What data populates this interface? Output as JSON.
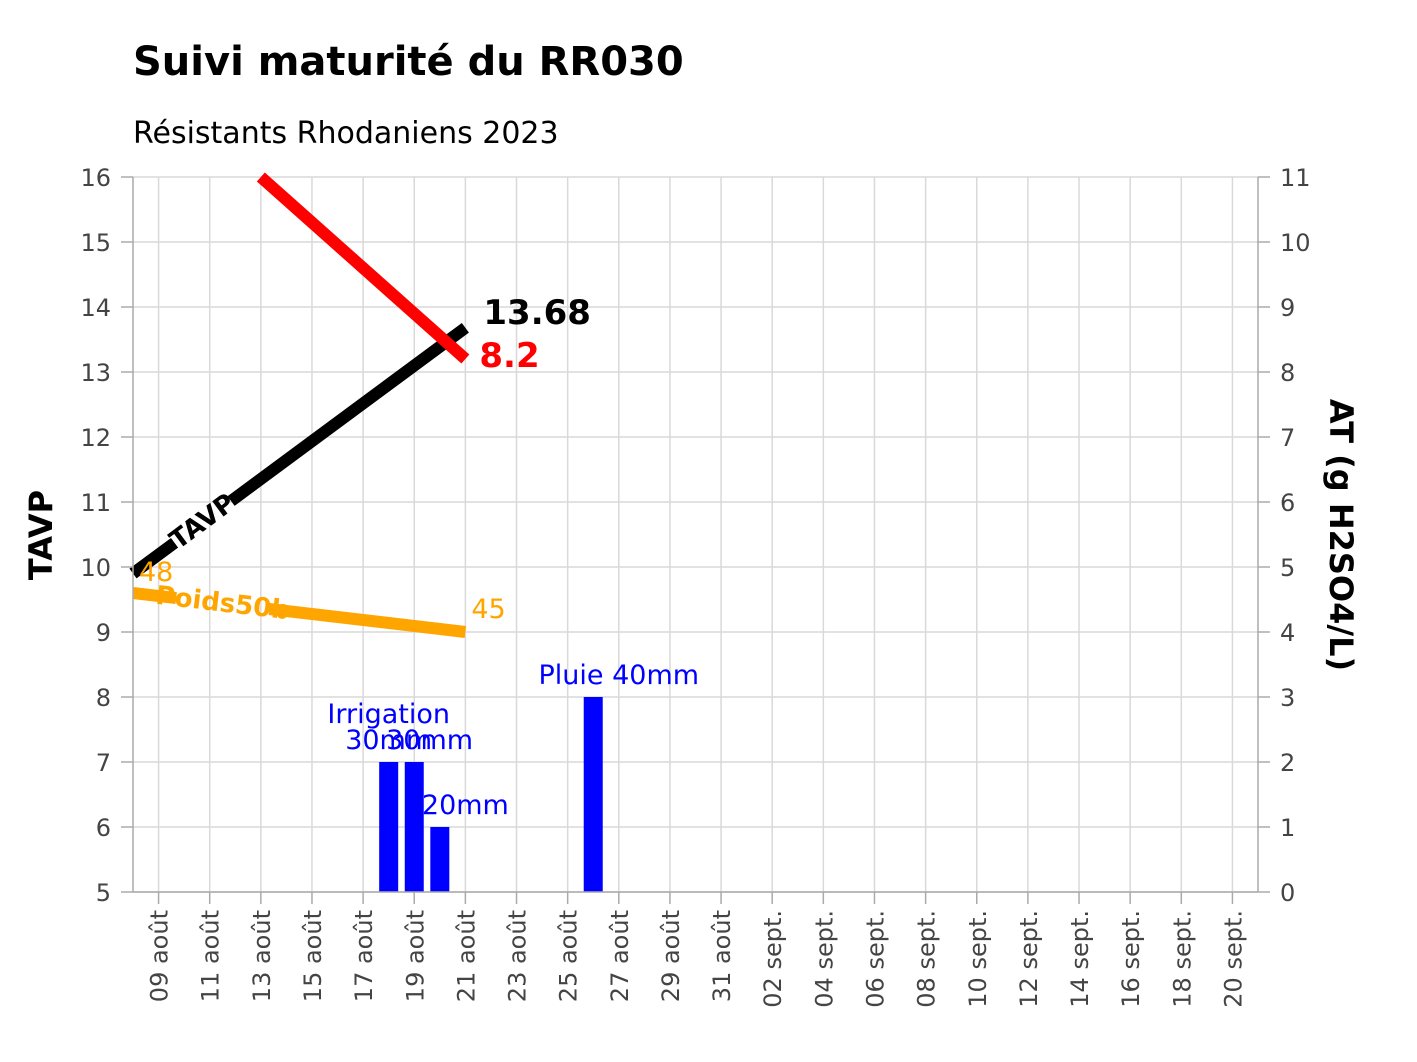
{
  "chart_data": {
    "type": "line",
    "title": "Suivi maturité du RR030",
    "subtitle": "Résistants Rhodaniens 2023",
    "ylabel": "TAVP",
    "y2label": "AT (g H2SO4/L)",
    "ylim": [
      5,
      16
    ],
    "y2lim": [
      0,
      11
    ],
    "yticks": [
      5,
      6,
      7,
      8,
      9,
      10,
      11,
      12,
      13,
      14,
      15,
      16
    ],
    "y2ticks": [
      0,
      1,
      2,
      3,
      4,
      5,
      6,
      7,
      8,
      9,
      10,
      11
    ],
    "xlim": [
      "2023-08-08",
      "2023-09-21"
    ],
    "xticks": [
      {
        "date": "2023-08-09",
        "label": "09 août"
      },
      {
        "date": "2023-08-11",
        "label": "11 août"
      },
      {
        "date": "2023-08-13",
        "label": "13 août"
      },
      {
        "date": "2023-08-15",
        "label": "15 août"
      },
      {
        "date": "2023-08-17",
        "label": "17 août"
      },
      {
        "date": "2023-08-19",
        "label": "19 août"
      },
      {
        "date": "2023-08-21",
        "label": "21 août"
      },
      {
        "date": "2023-08-23",
        "label": "23 août"
      },
      {
        "date": "2023-08-25",
        "label": "25 août"
      },
      {
        "date": "2023-08-27",
        "label": "27 août"
      },
      {
        "date": "2023-08-29",
        "label": "29 août"
      },
      {
        "date": "2023-08-31",
        "label": "31 août"
      },
      {
        "date": "2023-09-02",
        "label": "02 sept."
      },
      {
        "date": "2023-09-04",
        "label": "04 sept."
      },
      {
        "date": "2023-09-06",
        "label": "06 sept."
      },
      {
        "date": "2023-09-08",
        "label": "08 sept."
      },
      {
        "date": "2023-09-10",
        "label": "10 sept."
      },
      {
        "date": "2023-09-12",
        "label": "12 sept."
      },
      {
        "date": "2023-09-14",
        "label": "14 sept."
      },
      {
        "date": "2023-09-16",
        "label": "16 sept."
      },
      {
        "date": "2023-09-18",
        "label": "18 sept."
      },
      {
        "date": "2023-09-20",
        "label": "20 sept."
      }
    ],
    "grid": true,
    "series": [
      {
        "name": "TAVP",
        "axis": "left",
        "color": "#000000",
        "points": [
          {
            "x": "2023-08-08",
            "y": 9.9
          },
          {
            "x": "2023-08-21",
            "y": 13.68
          }
        ],
        "inline_label": "TAVP",
        "end_label": "13.68"
      },
      {
        "name": "AT",
        "axis": "right",
        "color": "#ff0000",
        "points": [
          {
            "x": "2023-08-13",
            "y": 11.0
          },
          {
            "x": "2023-08-21",
            "y": 8.2
          }
        ],
        "end_label": "8.2"
      },
      {
        "name": "Poids50b",
        "axis": "left",
        "color": "#ffa500",
        "points": [
          {
            "x": "2023-08-08",
            "y": 9.6
          },
          {
            "x": "2023-08-21",
            "y": 9.0
          }
        ],
        "inline_label": "Poids50b",
        "start_label": "48",
        "end_label": "45"
      }
    ],
    "bars": {
      "axis": "right",
      "color": "#0000ff",
      "items": [
        {
          "x": "2023-08-18",
          "value": 2
        },
        {
          "x": "2023-08-19",
          "value": 2
        },
        {
          "x": "2023-08-20",
          "value": 1
        },
        {
          "x": "2023-08-26",
          "value": 3
        }
      ]
    },
    "annotations": [
      {
        "text": "Irrigation",
        "x": "2023-08-18",
        "y": 7.6,
        "color": "#0000ff"
      },
      {
        "text": "30mm",
        "x": "2023-08-18",
        "y": 7.2,
        "color": "#0000ff"
      },
      {
        "text": "30mm",
        "x": "2023-08-19.6",
        "y": 7.2,
        "color": "#0000ff"
      },
      {
        "text": "20mm",
        "x": "2023-08-21",
        "y": 6.2,
        "color": "#0000ff"
      },
      {
        "text": "Pluie 40mm",
        "x": "2023-08-27",
        "y": 8.2,
        "color": "#0000ff"
      }
    ]
  }
}
